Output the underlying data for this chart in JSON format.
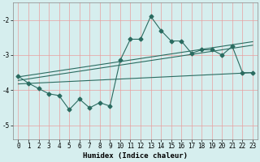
{
  "title": "",
  "xlabel": "Humidex (Indice chaleur)",
  "ylabel": "",
  "bg_color": "#d6eeee",
  "line_color": "#2a6b60",
  "grid_color": "#e8a0a0",
  "xlim": [
    -0.5,
    23.5
  ],
  "ylim": [
    -5.4,
    -1.5
  ],
  "yticks": [
    -5,
    -4,
    -3,
    -2
  ],
  "xticks": [
    0,
    1,
    2,
    3,
    4,
    5,
    6,
    7,
    8,
    9,
    10,
    11,
    12,
    13,
    14,
    15,
    16,
    17,
    18,
    19,
    20,
    21,
    22,
    23
  ],
  "scatter_x": [
    0,
    1,
    2,
    3,
    4,
    5,
    6,
    7,
    8,
    9,
    10,
    11,
    12,
    13,
    14,
    15,
    16,
    17,
    18,
    19,
    20,
    21,
    22,
    23
  ],
  "scatter_y": [
    -3.6,
    -3.8,
    -3.95,
    -4.1,
    -4.15,
    -4.55,
    -4.25,
    -4.5,
    -4.35,
    -4.45,
    -3.15,
    -2.55,
    -2.55,
    -1.9,
    -2.3,
    -2.6,
    -2.6,
    -2.95,
    -2.85,
    -2.85,
    -3.0,
    -2.75,
    -3.5,
    -3.5
  ],
  "reg_line1_x": [
    0,
    23
  ],
  "reg_line1_y": [
    -3.62,
    -2.62
  ],
  "reg_line2_x": [
    0,
    23
  ],
  "reg_line2_y": [
    -3.72,
    -2.72
  ],
  "reg_line3_x": [
    0,
    23
  ],
  "reg_line3_y": [
    -3.82,
    -3.5
  ],
  "marker_size": 2.5,
  "linewidth": 0.8,
  "tick_fontsize": 5.5,
  "xlabel_fontsize": 6.5
}
